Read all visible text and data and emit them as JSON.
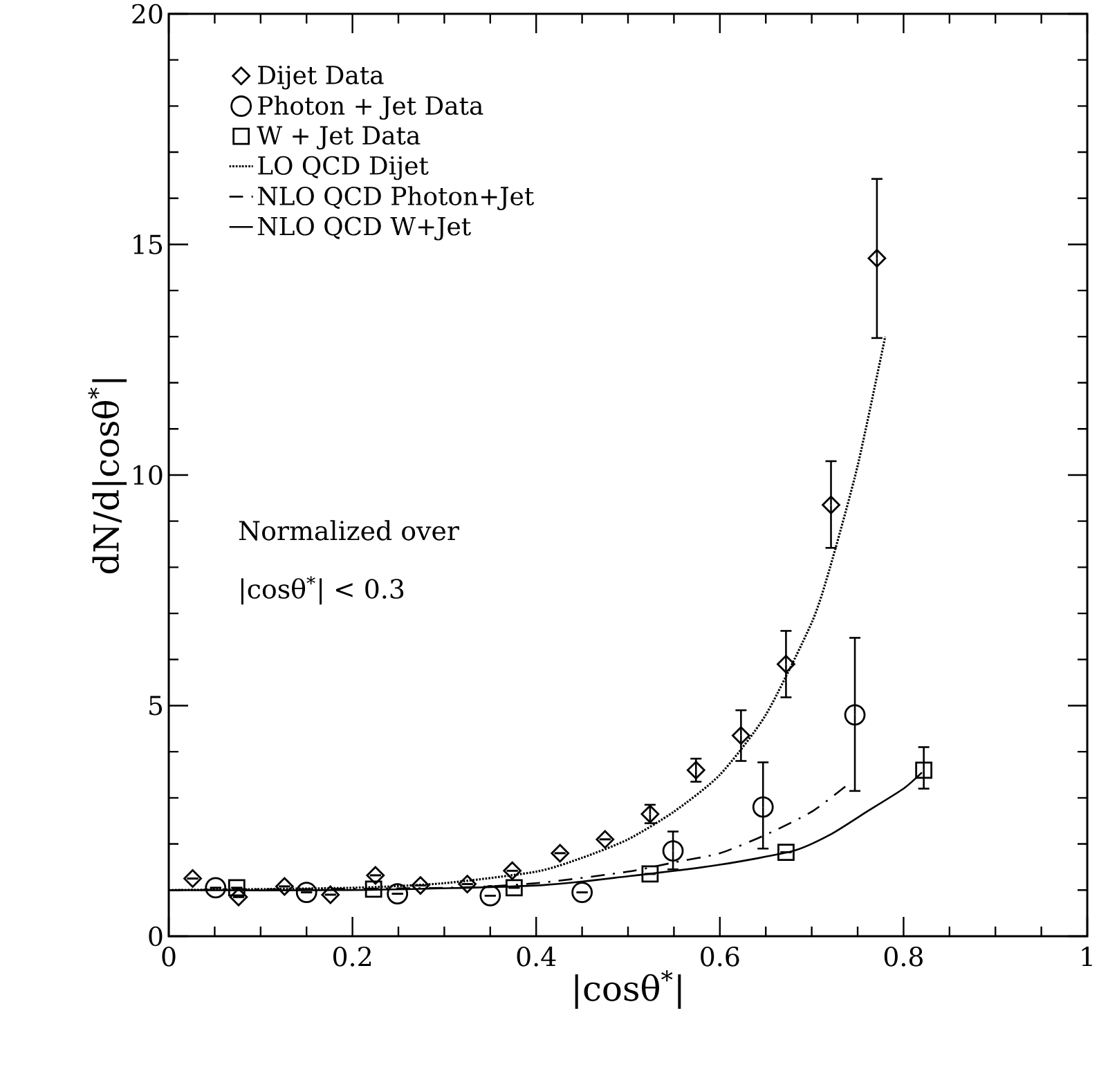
{
  "chart_data": {
    "type": "scatter",
    "xlabel": "|cosθ$^{*}$|",
    "ylabel": "dN/d|cosθ$^{*}$|",
    "xlim": [
      0,
      1
    ],
    "ylim": [
      0,
      20
    ],
    "xticks": [
      0,
      0.2,
      0.4,
      0.6,
      0.8,
      1
    ],
    "yticks": [
      0,
      5,
      10,
      15,
      20
    ],
    "legend": "top left",
    "annotations": [
      "Normalized over",
      "|cosθ$^{*}$| < 0.3"
    ],
    "series": [
      {
        "name": "Dijet Data",
        "marker": "diamond",
        "color": "#000000",
        "x": [
          0.026,
          0.076,
          0.126,
          0.176,
          0.225,
          0.274,
          0.325,
          0.374,
          0.426,
          0.475,
          0.524,
          0.574,
          0.623,
          0.672,
          0.721,
          0.771
        ],
        "values": [
          1.25,
          0.85,
          1.08,
          0.9,
          1.32,
          1.1,
          1.13,
          1.42,
          1.8,
          2.1,
          2.65,
          3.6,
          4.35,
          5.9,
          9.35,
          14.7
        ],
        "errors": [
          null,
          null,
          null,
          null,
          null,
          null,
          null,
          null,
          null,
          null,
          0.2,
          0.25,
          [
            3.8,
            4.9
          ],
          [
            5.18,
            6.62
          ],
          [
            8.42,
            10.3
          ],
          [
            12.97,
            16.42
          ]
        ]
      },
      {
        "name": "Photon + Jet Data",
        "marker": "circle",
        "color": "#000000",
        "x": [
          0.051,
          0.15,
          0.249,
          0.35,
          0.45,
          0.549,
          0.647,
          0.747
        ],
        "values": [
          1.05,
          0.95,
          0.92,
          0.88,
          0.95,
          1.85,
          2.8,
          4.8
        ],
        "errors": [
          null,
          null,
          null,
          null,
          null,
          [
            1.45,
            2.27
          ],
          [
            1.9,
            3.77
          ],
          [
            3.15,
            6.47
          ]
        ]
      },
      {
        "name": "W + Jet Data",
        "marker": "square",
        "color": "#000000",
        "x": [
          0.074,
          0.223,
          0.376,
          0.524,
          0.672,
          0.822
        ],
        "values": [
          1.05,
          1.02,
          1.05,
          1.35,
          1.82,
          3.6
        ],
        "errors": [
          null,
          null,
          null,
          null,
          null,
          [
            3.2,
            4.1
          ]
        ]
      },
      {
        "name": "LO QCD Dijet",
        "type": "line",
        "line_style": "dotted",
        "marker": "none",
        "color": "#000000",
        "x": [
          0,
          0.2,
          0.3,
          0.4,
          0.45,
          0.5,
          0.55,
          0.6,
          0.65,
          0.7,
          0.72,
          0.75,
          0.78
        ],
        "values": [
          1.0,
          1.05,
          1.15,
          1.4,
          1.7,
          2.1,
          2.7,
          3.5,
          4.8,
          6.8,
          8.0,
          10.2,
          13.0
        ]
      },
      {
        "name": "NLO QCD Photon+Jet",
        "type": "line",
        "line_style": "dashdotted",
        "marker": "none",
        "color": "#000000",
        "x": [
          0,
          0.3,
          0.4,
          0.5,
          0.55,
          0.6,
          0.65,
          0.7,
          0.74
        ],
        "values": [
          1.0,
          1.05,
          1.15,
          1.4,
          1.6,
          1.8,
          2.2,
          2.7,
          3.3
        ]
      },
      {
        "name": "NLO QCD W+Jet",
        "type": "line",
        "line_style": "solid",
        "marker": "none",
        "color": "#000000",
        "x": [
          0,
          0.2,
          0.4,
          0.5,
          0.6,
          0.68,
          0.72,
          0.76,
          0.8,
          0.82
        ],
        "values": [
          1.0,
          1.0,
          1.1,
          1.3,
          1.55,
          1.85,
          2.2,
          2.7,
          3.2,
          3.55
        ]
      }
    ]
  }
}
